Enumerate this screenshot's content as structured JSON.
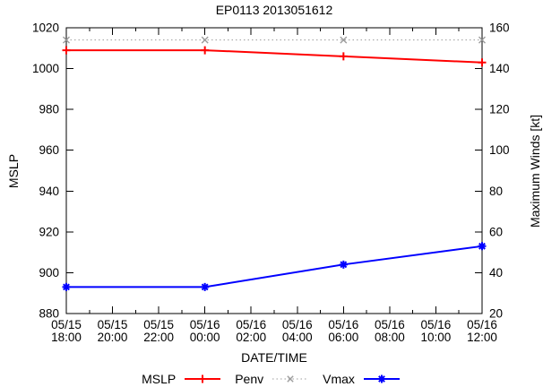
{
  "chart_data": {
    "type": "line",
    "title": "EP0113 2013051612",
    "xlabel": "DATE/TIME",
    "ylabel_left": "MSLP",
    "ylabel_right": "Maximum Winds [kt]",
    "grid": false,
    "legend_position": "bottom-center",
    "x_domain_hours": [
      0,
      18
    ],
    "x_major_every_hours": 2,
    "x_minor_every_hours": 1,
    "x_ticks": [
      {
        "date": "05/15",
        "time": "18:00"
      },
      {
        "date": "05/15",
        "time": "20:00"
      },
      {
        "date": "05/15",
        "time": "22:00"
      },
      {
        "date": "05/16",
        "time": "00:00"
      },
      {
        "date": "05/16",
        "time": "02:00"
      },
      {
        "date": "05/16",
        "time": "04:00"
      },
      {
        "date": "05/16",
        "time": "06:00"
      },
      {
        "date": "05/16",
        "time": "08:00"
      },
      {
        "date": "05/16",
        "time": "10:00"
      },
      {
        "date": "05/16",
        "time": "12:00"
      }
    ],
    "y_left": {
      "min": 880,
      "max": 1020,
      "step": 20,
      "ticks": [
        880,
        900,
        920,
        940,
        960,
        980,
        1000,
        1020
      ]
    },
    "y_right": {
      "min": 20,
      "max": 160,
      "step": 20,
      "ticks": [
        20,
        40,
        60,
        80,
        100,
        120,
        140,
        160
      ]
    },
    "series": [
      {
        "name": "MSLP",
        "axis": "left",
        "color": "#ff0000",
        "style": "solid",
        "marker": "plus",
        "line_width": 2,
        "x_hours": [
          0,
          6,
          12,
          18
        ],
        "values": [
          1009,
          1009,
          1006,
          1003
        ],
        "point_times": [
          "05/15 18:00",
          "05/16 00:00",
          "05/16 06:00",
          "05/16 12:00"
        ]
      },
      {
        "name": "Penv",
        "axis": "left",
        "color": "#9c9c9c",
        "style": "dotted",
        "marker": "cross",
        "line_width": 1,
        "x_hours": [
          0,
          6,
          12,
          18
        ],
        "values": [
          1014,
          1014,
          1014,
          1014
        ],
        "point_times": [
          "05/15 18:00",
          "05/16 00:00",
          "05/16 06:00",
          "05/16 12:00"
        ]
      },
      {
        "name": "Vmax",
        "axis": "right",
        "color": "#0000ff",
        "style": "solid",
        "marker": "star",
        "line_width": 2,
        "x_hours": [
          0,
          6,
          12,
          18
        ],
        "values": [
          33,
          33,
          44,
          53
        ],
        "point_times": [
          "05/15 18:00",
          "05/16 00:00",
          "05/16 06:00",
          "05/16 12:00"
        ]
      }
    ]
  }
}
